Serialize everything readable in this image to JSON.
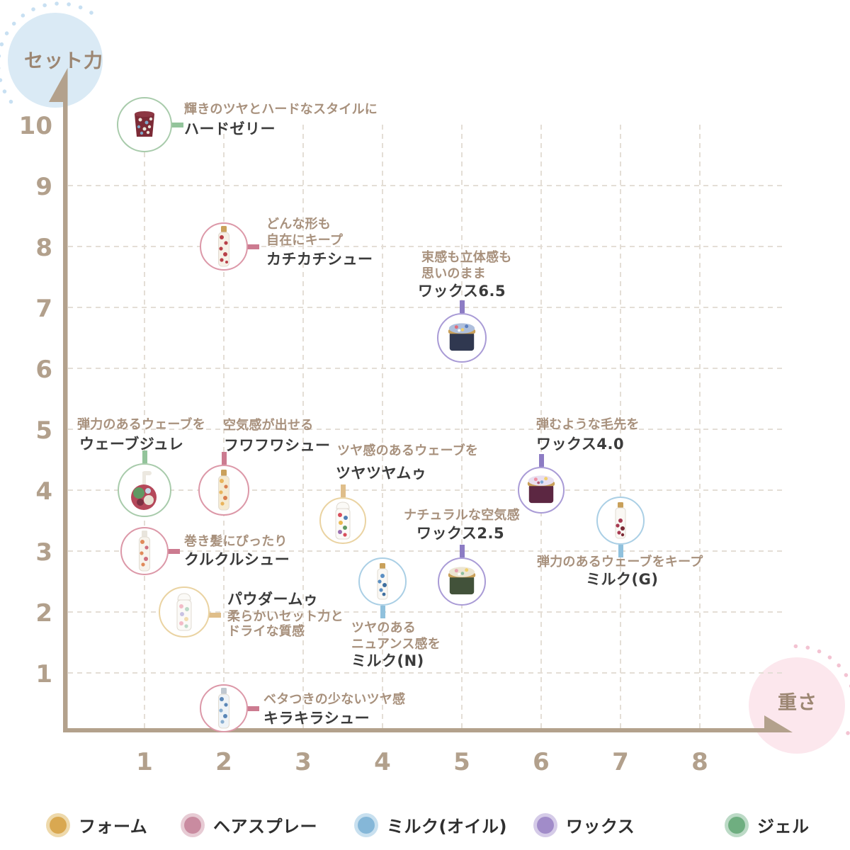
{
  "decor": {
    "y_bubble_label": "セット力",
    "x_bubble_label": "重さ"
  },
  "chart_data": {
    "type": "scatter",
    "xlabel": "重さ",
    "ylabel": "セット力",
    "xlim": [
      0,
      8
    ],
    "ylim": [
      0,
      10
    ],
    "x_ticks": [
      "1",
      "2",
      "3",
      "4",
      "5",
      "6",
      "7",
      "8"
    ],
    "y_ticks": [
      "1",
      "2",
      "3",
      "4",
      "5",
      "6",
      "7",
      "8",
      "9",
      "10"
    ],
    "grid": "dashed",
    "legend_position": "bottom",
    "categories": [
      {
        "id": "foam",
        "label": "フォーム",
        "color": "#d9a851"
      },
      {
        "id": "spray",
        "label": "ヘアスプレー",
        "color": "#c98ba0"
      },
      {
        "id": "milk",
        "label": "ミルク(オイル)",
        "color": "#85b7d8"
      },
      {
        "id": "wax",
        "label": "ワックス",
        "color": "#a18cc9"
      },
      {
        "id": "gel",
        "label": "ジェル",
        "color": "#6fae80"
      }
    ],
    "points": [
      {
        "id": "hard_jelly",
        "name": "ハードゼリー",
        "desc": [
          "輝きのツヤとハードなスタイルに"
        ],
        "weight": 1,
        "set_power": 10,
        "category": "gel"
      },
      {
        "id": "kachikachi",
        "name": "カチカチシュー",
        "desc": [
          "どんな形も",
          "自在にキープ"
        ],
        "weight": 2,
        "set_power": 8,
        "category": "spray"
      },
      {
        "id": "wax65",
        "name": "ワックス6.5",
        "desc": [
          "束感も立体感も",
          "思いのまま"
        ],
        "weight": 5,
        "set_power": 6.5,
        "category": "wax"
      },
      {
        "id": "wave_jule",
        "name": "ウェーブジュレ",
        "desc": [
          "弾力のあるウェーブを"
        ],
        "weight": 1,
        "set_power": 4,
        "category": "gel"
      },
      {
        "id": "fuwafuwa",
        "name": "フワフワシュー",
        "desc": [
          "空気感が出せる"
        ],
        "weight": 2,
        "set_power": 4,
        "category": "spray"
      },
      {
        "id": "tsuyatsuya",
        "name": "ツヤツヤムゥ",
        "desc": [
          "ツヤ感のあるウェーブを"
        ],
        "weight": 3.5,
        "set_power": 3.5,
        "category": "foam"
      },
      {
        "id": "wax40",
        "name": "ワックス4.0",
        "desc": [
          "弾むような毛先を"
        ],
        "weight": 6,
        "set_power": 4,
        "category": "wax"
      },
      {
        "id": "milk_g",
        "name": "ミルク(G)",
        "desc": [
          "弾力のあるウェーブをキープ"
        ],
        "weight": 7,
        "set_power": 3.5,
        "category": "milk"
      },
      {
        "id": "kurukuru",
        "name": "クルクルシュー",
        "desc": [
          "巻き髪にぴったり"
        ],
        "weight": 1,
        "set_power": 3,
        "category": "spray"
      },
      {
        "id": "wax25",
        "name": "ワックス2.5",
        "desc": [
          "ナチュラルな空気感"
        ],
        "weight": 5,
        "set_power": 2.5,
        "category": "wax"
      },
      {
        "id": "milk_n",
        "name": "ミルク(N)",
        "desc": [
          "ツヤのある",
          "ニュアンス感を"
        ],
        "weight": 4,
        "set_power": 2.5,
        "category": "milk"
      },
      {
        "id": "powder_mu",
        "name": "パウダームゥ",
        "desc": [
          "柔らかいセット力と",
          "ドライな質感"
        ],
        "weight": 1.5,
        "set_power": 2,
        "category": "foam"
      },
      {
        "id": "kirakira",
        "name": "キラキラシュー",
        "desc": [
          "ベタつきの少ないツヤ感"
        ],
        "weight": 2,
        "set_power": 0.5,
        "category": "spray"
      }
    ]
  }
}
